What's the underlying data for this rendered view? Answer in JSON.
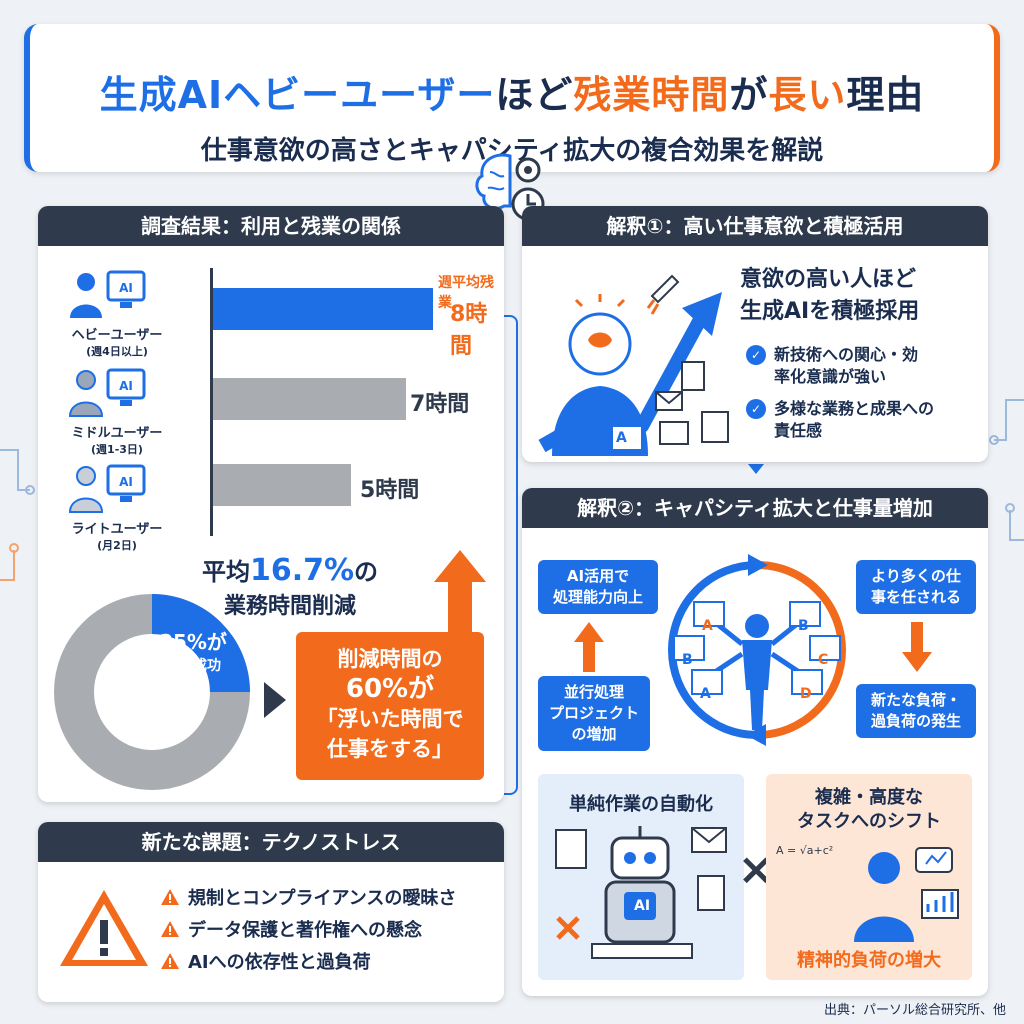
{
  "header": {
    "title_part1": "生成AIヘビーユーザー",
    "title_part2": "ほど",
    "title_part3": "残業時間",
    "title_part4": "が",
    "title_part5": "長い",
    "title_part6": "理由",
    "subtitle": "仕事意欲の高さとキャパシティ拡大の複合効果を解説"
  },
  "survey": {
    "heading": "調査結果：利用と残業の関係",
    "bar_unit_label": "週平均残業",
    "rows": [
      {
        "label": "ヘビーユーザー",
        "sub": "(週4日以上)",
        "value_label": "8時間",
        "hours": 8,
        "icon_text": "AI"
      },
      {
        "label": "ミドルユーザー",
        "sub": "(週1-3日)",
        "value_label": "7時間",
        "hours": 7,
        "icon_text": "AI"
      },
      {
        "label": "ライトユーザー",
        "sub": "(月2日)",
        "value_label": "5時間",
        "hours": 5,
        "icon_text": "AI"
      }
    ],
    "avg_prefix": "平均",
    "avg_value": "16.7%",
    "avg_suffix": "の",
    "avg_line2": "業務時間削減",
    "donut_pct": "25%が",
    "donut_text": "短縮成功",
    "donut_fraction": 0.25,
    "orange_line1": "削減時間の",
    "orange_line2": "60%が",
    "orange_line3": "「浮いた時間で",
    "orange_line4": "仕事をする」"
  },
  "interp1": {
    "heading": "解釈①：高い仕事意欲と積極活用",
    "main_line1": "意欲の高い人ほど",
    "main_line2": "生成AIを積極採用",
    "bullets": [
      {
        "line1": "新技術への関心・効",
        "line2": "率化意識が強い"
      },
      {
        "line1": "多様な業務と成果への",
        "line2": "責任感"
      }
    ],
    "letter_a": "A"
  },
  "interp2": {
    "heading": "解釈②：キャパシティ拡大と仕事量増加",
    "tag_tl": [
      "AI活用で",
      "処理能力向上"
    ],
    "tag_tr": [
      "より多くの仕",
      "事を任される"
    ],
    "tag_bl": [
      "並行処理",
      "プロジェクト",
      "の増加"
    ],
    "tag_br": [
      "新たな負荷・",
      "過負荷の発生"
    ],
    "doc_letters": [
      "A",
      "B",
      "B",
      "C",
      "A",
      "D"
    ],
    "auto_title": "単純作業の自動化",
    "robot_badge": "AI",
    "complex_line1": "複雑・高度な",
    "complex_line2": "タスクへのシフト",
    "complex_foot": "精神的負荷の増大",
    "formula_text": "A = √a+c²",
    "times_symbol": "×"
  },
  "issues": {
    "heading": "新たな課題：テクノストレス",
    "items": [
      "規制とコンプライアンスの曖昧さ",
      "データ保護と著作権への懸念",
      "AIへの依存性と過負荷"
    ]
  },
  "source": "出典：パーソル総合研究所、他",
  "colors": {
    "blue": "#1e6fe6",
    "orange": "#f26b1d",
    "dark": "#2f3b4c",
    "gray_bar": "#a9adb2"
  }
}
